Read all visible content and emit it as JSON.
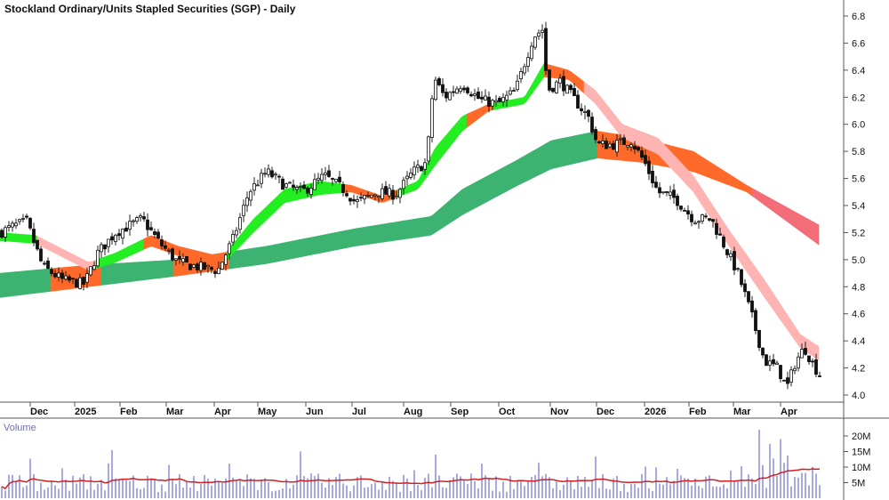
{
  "chart_data": [
    {
      "type": "candlestick",
      "title": "Stockland Ordinary/Units Stapled Securities (SGP) - Daily",
      "y_ticks": [
        4.0,
        4.2,
        4.4,
        4.6,
        4.8,
        5.0,
        5.2,
        5.4,
        5.6,
        5.8,
        6.0,
        6.2,
        6.4,
        6.6,
        6.8
      ],
      "ylim": [
        3.96,
        6.84
      ],
      "x_ticks": [
        "Dec",
        "2025",
        "Feb",
        "Mar",
        "Apr",
        "May",
        "Jun",
        "Jul",
        "Aug",
        "Sep",
        "Oct",
        "Nov",
        "Dec",
        "2026",
        "Feb",
        "Mar",
        "Apr"
      ],
      "price_path": [
        [
          0,
          5.2
        ],
        [
          16,
          5.25
        ],
        [
          30,
          5.28
        ],
        [
          48,
          4.95
        ],
        [
          70,
          4.85
        ],
        [
          95,
          4.82
        ],
        [
          110,
          5.05
        ],
        [
          130,
          5.2
        ],
        [
          160,
          5.3
        ],
        [
          180,
          5.12
        ],
        [
          200,
          4.98
        ],
        [
          220,
          4.95
        ],
        [
          245,
          4.92
        ],
        [
          262,
          5.15
        ],
        [
          280,
          5.5
        ],
        [
          300,
          5.65
        ],
        [
          320,
          5.55
        ],
        [
          340,
          5.5
        ],
        [
          365,
          5.62
        ],
        [
          390,
          5.5
        ],
        [
          400,
          5.42
        ],
        [
          425,
          5.5
        ],
        [
          445,
          5.48
        ],
        [
          465,
          5.65
        ],
        [
          480,
          5.72
        ],
        [
          488,
          6.35
        ],
        [
          500,
          6.2
        ],
        [
          520,
          6.3
        ],
        [
          540,
          6.18
        ],
        [
          560,
          6.15
        ],
        [
          580,
          6.25
        ],
        [
          590,
          6.45
        ],
        [
          600,
          6.65
        ],
        [
          610,
          6.7
        ],
        [
          616,
          6.25
        ],
        [
          630,
          6.32
        ],
        [
          650,
          6.15
        ],
        [
          662,
          6.05
        ],
        [
          672,
          5.85
        ],
        [
          690,
          5.85
        ],
        [
          710,
          5.88
        ],
        [
          725,
          5.72
        ],
        [
          740,
          5.5
        ],
        [
          760,
          5.45
        ],
        [
          780,
          5.3
        ],
        [
          800,
          5.3
        ],
        [
          815,
          5.1
        ],
        [
          830,
          4.9
        ],
        [
          845,
          4.6
        ],
        [
          860,
          4.25
        ],
        [
          875,
          4.2
        ],
        [
          885,
          4.05
        ],
        [
          895,
          4.25
        ],
        [
          905,
          4.35
        ],
        [
          915,
          4.22
        ],
        [
          925,
          4.12
        ]
      ],
      "long_band": {
        "upper": [
          [
            0,
            4.9
          ],
          [
            100,
            4.96
          ],
          [
            200,
            5.0
          ],
          [
            300,
            5.1
          ],
          [
            400,
            5.23
          ],
          [
            485,
            5.32
          ],
          [
            520,
            5.52
          ],
          [
            580,
            5.73
          ],
          [
            620,
            5.88
          ],
          [
            672,
            5.95
          ],
          [
            720,
            5.9
          ],
          [
            780,
            5.8
          ],
          [
            840,
            5.55
          ],
          [
            923,
            5.25
          ]
        ],
        "lower": [
          [
            0,
            4.72
          ],
          [
            100,
            4.8
          ],
          [
            200,
            4.88
          ],
          [
            300,
            4.97
          ],
          [
            400,
            5.1
          ],
          [
            485,
            5.18
          ],
          [
            520,
            5.33
          ],
          [
            580,
            5.54
          ],
          [
            620,
            5.67
          ],
          [
            672,
            5.75
          ],
          [
            720,
            5.72
          ],
          [
            780,
            5.65
          ],
          [
            840,
            5.5
          ],
          [
            923,
            5.1
          ]
        ],
        "colors": {
          "rising": "#3cb371",
          "falling": "#ff6a2a",
          "bearish": "#f26d78"
        }
      },
      "short_band": {
        "upper": [
          [
            0,
            5.2
          ],
          [
            40,
            5.18
          ],
          [
            100,
            4.98
          ],
          [
            130,
            5.05
          ],
          [
            170,
            5.18
          ],
          [
            200,
            5.1
          ],
          [
            250,
            5.02
          ],
          [
            285,
            5.3
          ],
          [
            320,
            5.52
          ],
          [
            360,
            5.58
          ],
          [
            395,
            5.55
          ],
          [
            430,
            5.47
          ],
          [
            470,
            5.58
          ],
          [
            490,
            5.83
          ],
          [
            520,
            6.06
          ],
          [
            550,
            6.15
          ],
          [
            590,
            6.2
          ],
          [
            612,
            6.45
          ],
          [
            640,
            6.4
          ],
          [
            670,
            6.25
          ],
          [
            700,
            6.0
          ],
          [
            740,
            5.9
          ],
          [
            780,
            5.62
          ],
          [
            820,
            5.22
          ],
          [
            860,
            4.85
          ],
          [
            900,
            4.45
          ],
          [
            923,
            4.35
          ]
        ],
        "lower": [
          [
            0,
            5.14
          ],
          [
            40,
            5.12
          ],
          [
            100,
            4.92
          ],
          [
            130,
            4.98
          ],
          [
            170,
            5.1
          ],
          [
            200,
            5.03
          ],
          [
            250,
            4.96
          ],
          [
            285,
            5.2
          ],
          [
            320,
            5.42
          ],
          [
            360,
            5.48
          ],
          [
            395,
            5.5
          ],
          [
            430,
            5.42
          ],
          [
            470,
            5.52
          ],
          [
            490,
            5.7
          ],
          [
            520,
            5.95
          ],
          [
            550,
            6.1
          ],
          [
            590,
            6.15
          ],
          [
            612,
            6.35
          ],
          [
            640,
            6.33
          ],
          [
            670,
            6.15
          ],
          [
            700,
            5.9
          ],
          [
            740,
            5.78
          ],
          [
            780,
            5.5
          ],
          [
            820,
            5.1
          ],
          [
            860,
            4.72
          ],
          [
            900,
            4.35
          ],
          [
            923,
            4.25
          ]
        ],
        "colors": {
          "rising": "#22ee22",
          "falling": "#ff6a2a",
          "bearish": "#ffb4b4"
        }
      }
    },
    {
      "type": "bar",
      "title": "Volume",
      "y_ticks": [
        "5M",
        "10M",
        "15M",
        "20M"
      ],
      "y_tick_values": [
        5,
        10,
        15,
        20
      ],
      "ylim": [
        0,
        23
      ],
      "moving_average": 8,
      "bar_color": "#8b8bd8",
      "ma_color": "#d02020"
    }
  ]
}
